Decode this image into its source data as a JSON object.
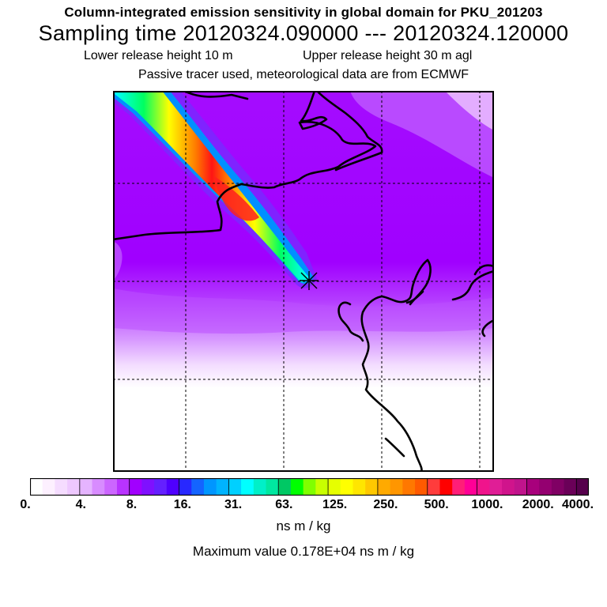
{
  "header": {
    "title": "Column-integrated emission sensitivity in global domain for PKU_201203",
    "sampling_time": "Sampling time   20120324.090000 --- 20120324.120000",
    "lower_release": "Lower release height   10 m",
    "upper_release": "Upper release height   30 m    agl",
    "tracer_info": "Passive tracer used, meteorological data are from ECMWF"
  },
  "map": {
    "description_icon": "release-site-marker-icon",
    "colors": {
      "background_purple": "#9C00FF",
      "light_purple": "#D47CFF",
      "coastline": "#000000",
      "grid": "#000000"
    }
  },
  "colorbar": {
    "colors": [
      "#FFFFFF",
      "#FDF0FF",
      "#F5DCFF",
      "#EEC8FF",
      "#E5B4FF",
      "#D88CFF",
      "#CC66FF",
      "#B833FF",
      "#A100FF",
      "#7F10FF",
      "#6420FF",
      "#4F00FF",
      "#2828FF",
      "#1464FF",
      "#0096FF",
      "#00B4FF",
      "#00D0FF",
      "#00FFFF",
      "#00F0C8",
      "#00E8A0",
      "#00C864",
      "#00FF00",
      "#80FF00",
      "#C8FF00",
      "#E6FF00",
      "#FFFF00",
      "#FFE600",
      "#FFC800",
      "#FFAA00",
      "#FF9600",
      "#FF7800",
      "#FF5A00",
      "#FF3C3C",
      "#FF0000",
      "#FF1E78",
      "#FF0096",
      "#F0148C",
      "#E01E96",
      "#D0148C",
      "#C0148C",
      "#A8007C",
      "#940070",
      "#800064",
      "#6A0058",
      "#56004C"
    ],
    "tick_labels": [
      "0.",
      "4.",
      "8.",
      "16.",
      "31.",
      "63.",
      "125.",
      "250.",
      "500.",
      "1000.",
      "2000.",
      "4000."
    ],
    "units": "ns m / kg"
  },
  "footer": {
    "max_value": "Maximum value  0.178E+04 ns m / kg"
  }
}
